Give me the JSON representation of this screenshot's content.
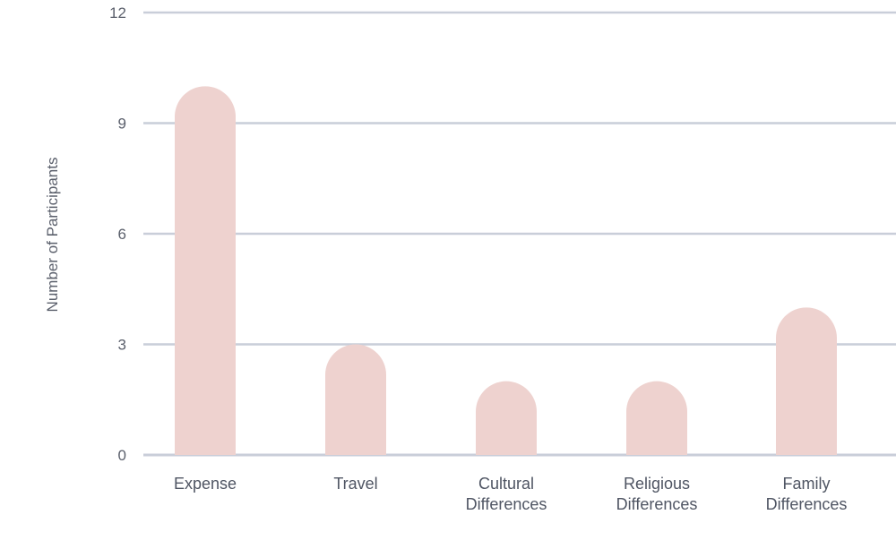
{
  "chart_data": {
    "type": "bar",
    "title": "",
    "xlabel": "",
    "ylabel": "Number of Participants",
    "categories": [
      [
        "Expense"
      ],
      [
        "Travel"
      ],
      [
        "Cultural",
        "Differences"
      ],
      [
        "Religious",
        "Differences"
      ],
      [
        "Family",
        "Differences"
      ]
    ],
    "values": [
      10,
      3,
      2,
      2,
      4
    ],
    "ylim": [
      0,
      12
    ],
    "yticks": [
      "0",
      "3",
      "6",
      "9",
      "12"
    ],
    "grid": true,
    "colors": {
      "bar": "#eed2cf",
      "grid": "#c9ced9",
      "text": "#5a5f6b"
    }
  }
}
